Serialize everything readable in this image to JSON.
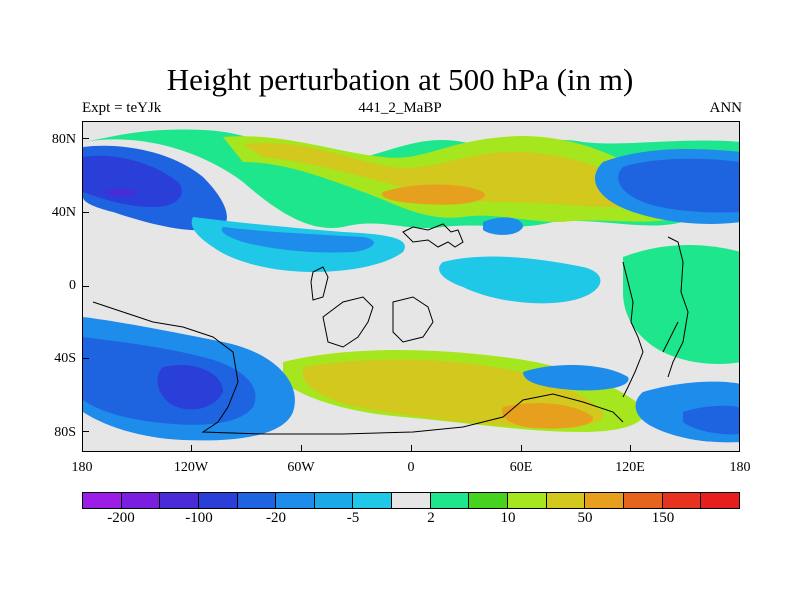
{
  "title": "Height perturbation at 500 hPa (in m)",
  "subtitle_left": "Expt = teYJk",
  "subtitle_center": "441_2_MaBP",
  "subtitle_right": "ANN",
  "map": {
    "lat_labels": [
      "80N",
      "40N",
      "0",
      "40S",
      "80S"
    ],
    "lon_labels": [
      "180",
      "120W",
      "60W",
      "0",
      "60E",
      "120E",
      "180"
    ]
  },
  "colorbar": {
    "colors": [
      "#9b1ee6",
      "#7a1ee0",
      "#4b2ad8",
      "#2a3ed8",
      "#1e64e0",
      "#1e8cea",
      "#1aaae6",
      "#1ec8e6",
      "#e6e6e6",
      "#1ee68c",
      "#46d21e",
      "#a6e61e",
      "#d2c81e",
      "#e6a01e",
      "#e6641e",
      "#e6321e",
      "#e61e1e"
    ],
    "labels": [
      "-200",
      "-100",
      "-20",
      "-5",
      "2",
      "10",
      "50",
      "150"
    ]
  }
}
